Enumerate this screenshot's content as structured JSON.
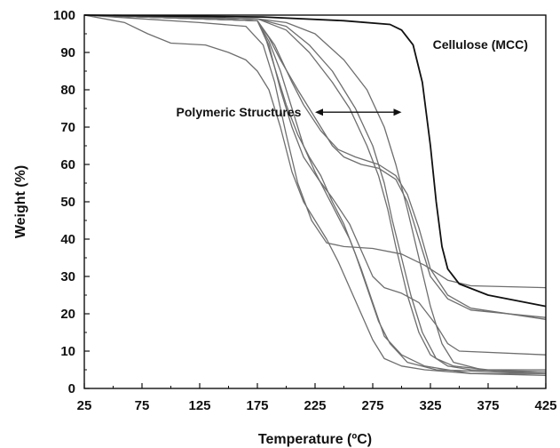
{
  "chart_data": {
    "type": "line",
    "title": "",
    "xlabel": "Temperature (ºC)",
    "ylabel": "Weight (%)",
    "xlim": [
      25,
      425
    ],
    "ylim": [
      0,
      100
    ],
    "grid": false,
    "x_ticks": [
      "25",
      "75",
      "125",
      "175",
      "225",
      "275",
      "325",
      "375",
      "425"
    ],
    "y_ticks": [
      "0",
      "10",
      "20",
      "30",
      "40",
      "50",
      "60",
      "70",
      "80",
      "90",
      "100"
    ],
    "annotations": {
      "cellulose_label": "Cellulose (MCC)",
      "polymeric_label": "Polymeric Structures",
      "arrow_x_range": [
        225,
        300
      ],
      "arrow_y": 74
    },
    "colors": {
      "cellulose": "#111111",
      "polymeric": "#6e6e6e"
    },
    "series": [
      {
        "name": "Cellulose (MCC)",
        "points": [
          [
            25,
            100
          ],
          [
            180,
            99.5
          ],
          [
            250,
            98.5
          ],
          [
            290,
            97.5
          ],
          [
            300,
            96
          ],
          [
            310,
            92
          ],
          [
            318,
            82
          ],
          [
            325,
            65
          ],
          [
            330,
            50
          ],
          [
            335,
            38
          ],
          [
            340,
            32
          ],
          [
            350,
            28
          ],
          [
            375,
            25
          ],
          [
            425,
            22
          ]
        ]
      },
      {
        "points": [
          [
            25,
            100
          ],
          [
            75,
            99
          ],
          [
            125,
            98
          ],
          [
            165,
            97
          ],
          [
            180,
            92
          ],
          [
            190,
            82
          ],
          [
            200,
            68
          ],
          [
            210,
            55
          ],
          [
            222,
            45
          ],
          [
            235,
            39
          ],
          [
            250,
            38
          ],
          [
            275,
            37.5
          ],
          [
            300,
            36
          ],
          [
            320,
            33
          ],
          [
            340,
            29
          ],
          [
            360,
            27.5
          ],
          [
            425,
            27
          ]
        ]
      },
      {
        "points": [
          [
            25,
            100
          ],
          [
            75,
            99.5
          ],
          [
            125,
            99
          ],
          [
            175,
            98.5
          ],
          [
            185,
            94
          ],
          [
            195,
            88
          ],
          [
            210,
            80
          ],
          [
            220,
            75
          ],
          [
            230,
            70
          ],
          [
            240,
            65
          ],
          [
            250,
            62
          ],
          [
            265,
            60
          ],
          [
            280,
            59
          ],
          [
            295,
            56
          ],
          [
            305,
            50
          ],
          [
            315,
            40
          ],
          [
            325,
            30
          ],
          [
            340,
            24
          ],
          [
            360,
            21
          ],
          [
            425,
            19
          ]
        ]
      },
      {
        "points": [
          [
            25,
            100
          ],
          [
            75,
            99.5
          ],
          [
            125,
            99
          ],
          [
            175,
            98.5
          ],
          [
            190,
            92
          ],
          [
            205,
            82
          ],
          [
            215,
            76
          ],
          [
            230,
            69
          ],
          [
            245,
            64
          ],
          [
            260,
            62
          ],
          [
            280,
            60
          ],
          [
            295,
            57
          ],
          [
            305,
            52
          ],
          [
            315,
            43
          ],
          [
            325,
            32
          ],
          [
            340,
            25
          ],
          [
            360,
            21.5
          ],
          [
            425,
            18.5
          ]
        ]
      },
      {
        "points": [
          [
            25,
            100
          ],
          [
            60,
            98
          ],
          [
            80,
            95
          ],
          [
            100,
            92.5
          ],
          [
            130,
            92
          ],
          [
            150,
            90
          ],
          [
            165,
            88
          ],
          [
            175,
            85
          ],
          [
            185,
            80
          ],
          [
            195,
            70
          ],
          [
            205,
            58
          ],
          [
            215,
            50
          ],
          [
            225,
            45
          ],
          [
            235,
            40
          ],
          [
            245,
            34
          ],
          [
            255,
            27
          ],
          [
            265,
            20
          ],
          [
            275,
            13
          ],
          [
            285,
            8
          ],
          [
            300,
            6
          ],
          [
            320,
            5
          ],
          [
            360,
            4
          ],
          [
            425,
            4
          ]
        ]
      },
      {
        "points": [
          [
            25,
            100
          ],
          [
            75,
            99.5
          ],
          [
            125,
            99
          ],
          [
            175,
            98.5
          ],
          [
            185,
            92
          ],
          [
            195,
            80
          ],
          [
            205,
            70
          ],
          [
            215,
            62
          ],
          [
            228,
            56
          ],
          [
            240,
            51
          ],
          [
            255,
            44
          ],
          [
            265,
            37
          ],
          [
            275,
            30
          ],
          [
            285,
            27
          ],
          [
            300,
            25.5
          ],
          [
            315,
            23
          ],
          [
            330,
            17
          ],
          [
            340,
            12
          ],
          [
            350,
            10
          ],
          [
            425,
            9
          ]
        ]
      },
      {
        "points": [
          [
            25,
            100
          ],
          [
            100,
            99.5
          ],
          [
            175,
            99
          ],
          [
            200,
            96
          ],
          [
            220,
            90
          ],
          [
            240,
            82
          ],
          [
            255,
            75
          ],
          [
            270,
            65
          ],
          [
            280,
            57
          ],
          [
            288,
            48
          ],
          [
            295,
            38
          ],
          [
            305,
            25
          ],
          [
            315,
            15
          ],
          [
            325,
            9
          ],
          [
            340,
            6
          ],
          [
            360,
            5
          ],
          [
            425,
            4.5
          ]
        ]
      },
      {
        "points": [
          [
            25,
            100
          ],
          [
            100,
            99.5
          ],
          [
            175,
            99
          ],
          [
            200,
            97
          ],
          [
            220,
            92
          ],
          [
            240,
            85
          ],
          [
            260,
            75
          ],
          [
            275,
            65
          ],
          [
            285,
            55
          ],
          [
            292,
            45
          ],
          [
            300,
            35
          ],
          [
            308,
            25
          ],
          [
            318,
            15
          ],
          [
            330,
            8
          ],
          [
            345,
            6
          ],
          [
            375,
            5
          ],
          [
            425,
            5
          ]
        ]
      },
      {
        "points": [
          [
            25,
            100
          ],
          [
            100,
            99.5
          ],
          [
            175,
            99
          ],
          [
            200,
            98
          ],
          [
            225,
            95
          ],
          [
            250,
            88
          ],
          [
            270,
            80
          ],
          [
            285,
            70
          ],
          [
            295,
            60
          ],
          [
            305,
            48
          ],
          [
            315,
            35
          ],
          [
            325,
            22
          ],
          [
            335,
            12
          ],
          [
            345,
            7
          ],
          [
            370,
            5
          ],
          [
            425,
            4
          ]
        ]
      },
      {
        "points": [
          [
            25,
            100
          ],
          [
            75,
            99.5
          ],
          [
            125,
            99
          ],
          [
            175,
            98.5
          ],
          [
            185,
            93
          ],
          [
            195,
            85
          ],
          [
            205,
            75
          ],
          [
            215,
            65
          ],
          [
            225,
            58
          ],
          [
            235,
            52
          ],
          [
            245,
            46
          ],
          [
            255,
            40
          ],
          [
            265,
            32
          ],
          [
            275,
            23
          ],
          [
            285,
            14
          ],
          [
            300,
            9
          ],
          [
            320,
            6
          ],
          [
            360,
            4
          ],
          [
            425,
            3.5
          ]
        ]
      },
      {
        "points": [
          [
            25,
            100
          ],
          [
            75,
            99.5
          ],
          [
            125,
            99
          ],
          [
            175,
            98.5
          ],
          [
            183,
            93
          ],
          [
            192,
            84
          ],
          [
            200,
            76
          ],
          [
            210,
            68
          ],
          [
            220,
            62
          ],
          [
            230,
            57
          ],
          [
            240,
            50
          ],
          [
            250,
            44
          ],
          [
            260,
            36
          ],
          [
            270,
            27
          ],
          [
            280,
            18
          ],
          [
            290,
            12
          ],
          [
            305,
            7
          ],
          [
            330,
            5
          ],
          [
            425,
            4
          ]
        ]
      }
    ]
  }
}
